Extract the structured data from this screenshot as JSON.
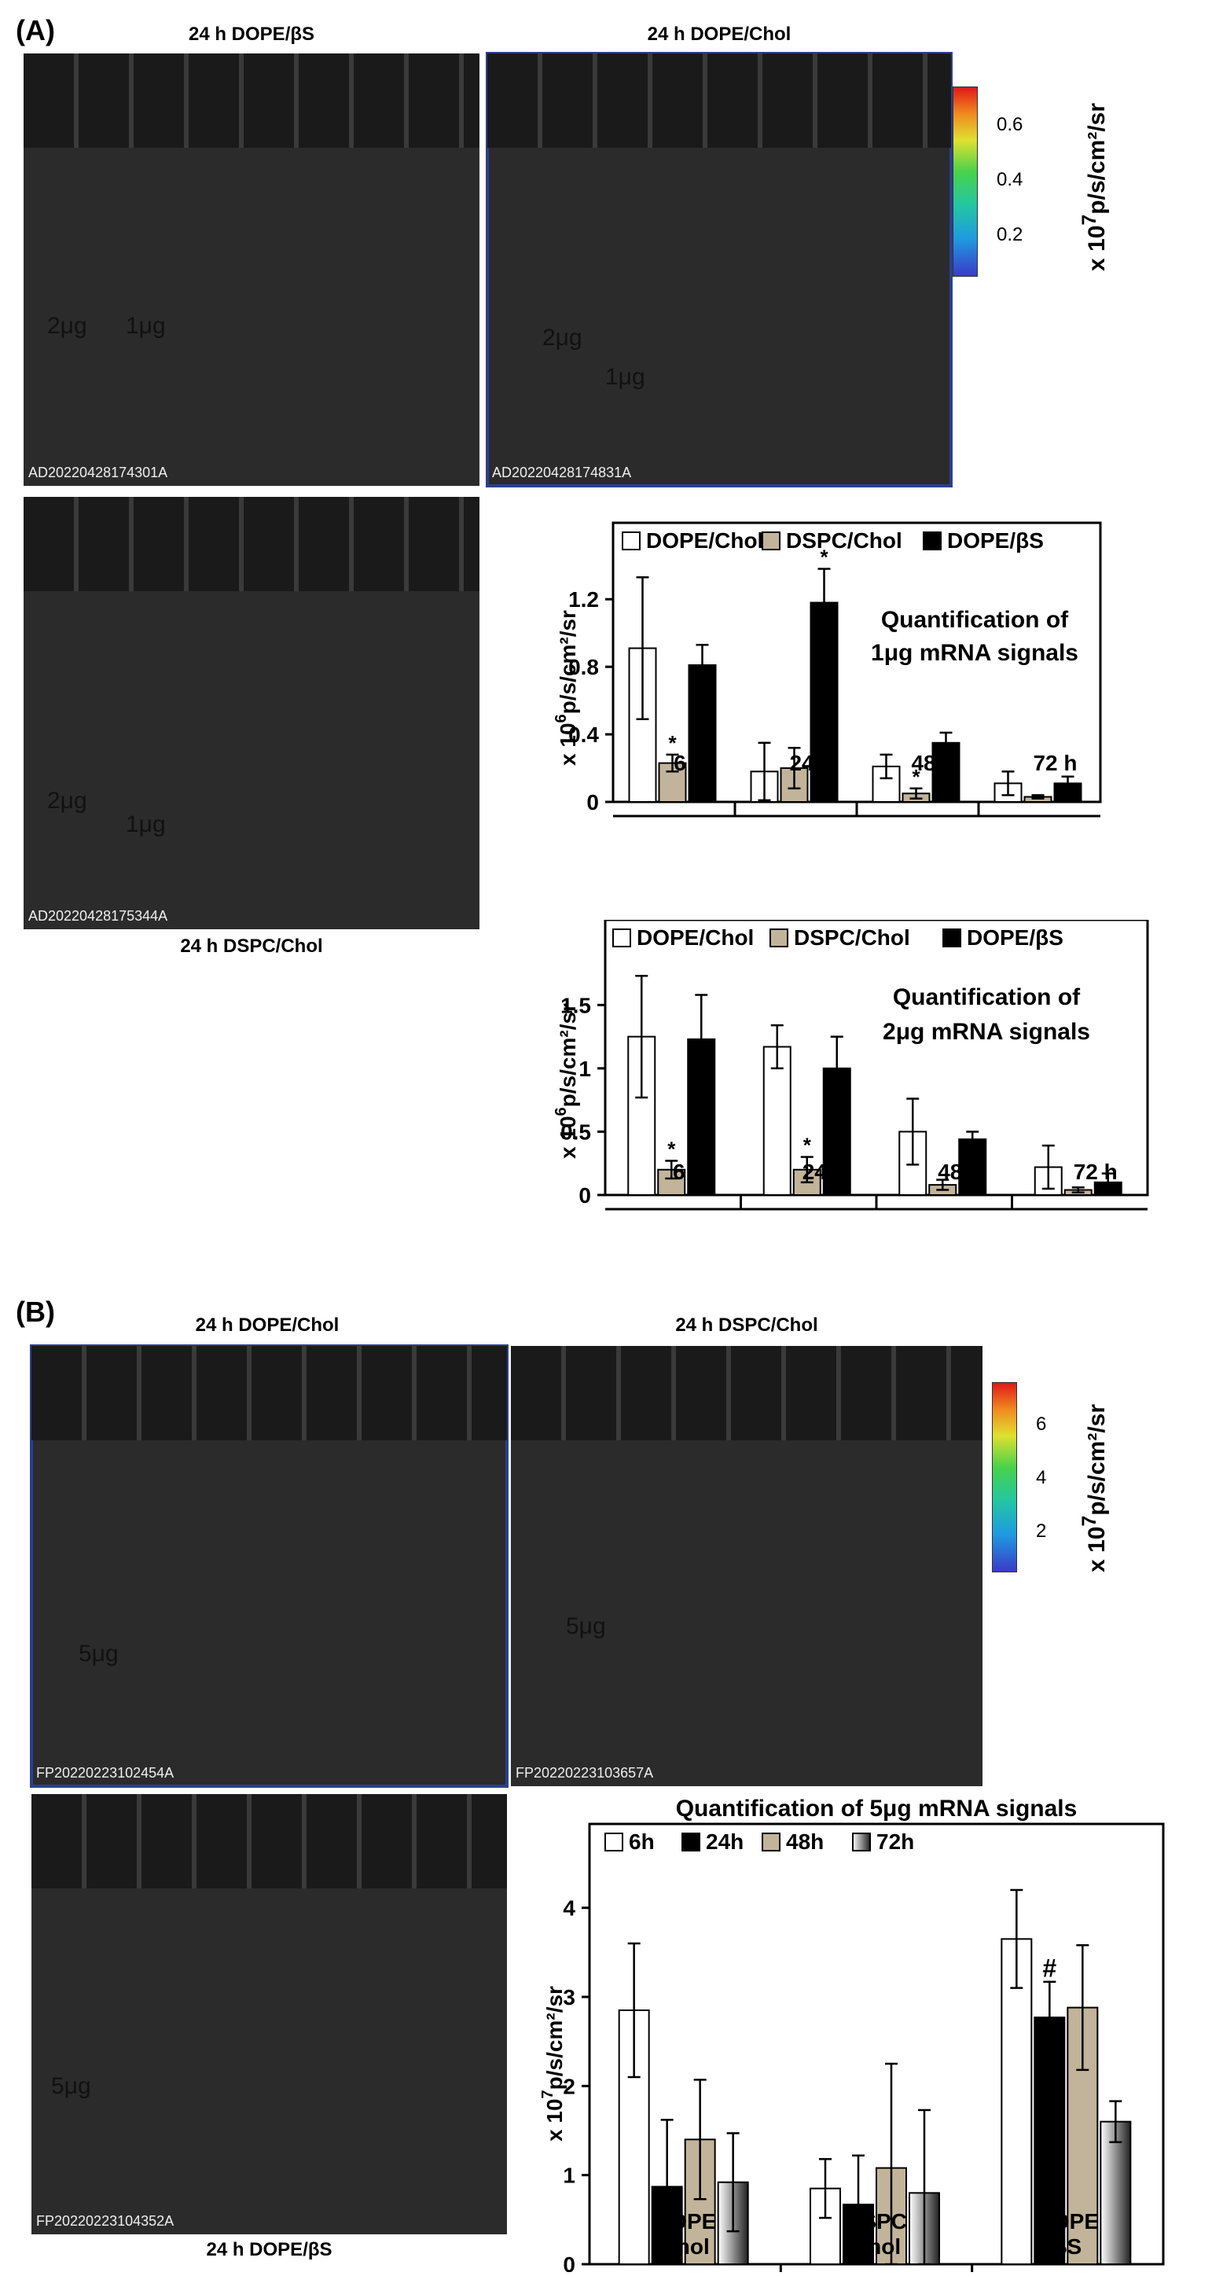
{
  "panel_a": {
    "label": "(A)",
    "photo1": {
      "caption": "24 h DOPE/βS",
      "id": "AD20220428174301A",
      "dose_a": "2μg",
      "dose_b": "1μg"
    },
    "photo2": {
      "caption": "24 h DOPE/Chol",
      "id": "AD20220428174831A",
      "dose_a": "2μg",
      "dose_b": "1μg"
    },
    "photo3": {
      "caption": "24 h DSPC/Chol",
      "id": "AD20220428175344A",
      "dose_a": "2μg",
      "dose_b": "1μg"
    },
    "colorbar": {
      "ticks": [
        "0.6",
        "0.4",
        "0.2"
      ],
      "unit_prefix": "x 10",
      "unit_exp": "7",
      "unit_suffix": "p/s/cm²/sr"
    }
  },
  "panel_b": {
    "label": "(B)",
    "photo1": {
      "caption": "24 h DOPE/Chol",
      "id": "FP20220223102454A",
      "dose": "5μg"
    },
    "photo2": {
      "caption": "24 h DSPC/Chol",
      "id": "FP20220223103657A",
      "dose": "5μg"
    },
    "photo3": {
      "caption": "24 h DOPE/βS",
      "id": "FP20220223104352A",
      "dose": "5μg"
    },
    "colorbar": {
      "ticks": [
        "6",
        "4",
        "2"
      ],
      "unit_prefix": "x 10",
      "unit_exp": "7",
      "unit_suffix": "p/s/cm²/sr"
    }
  },
  "colors": {
    "open": "#ffffff",
    "tan": "#c2b49a",
    "black": "#000000",
    "border": "#2a3f8f"
  },
  "chart_data": [
    {
      "type": "bar",
      "title": "Quantification of 1μg mRNA signals",
      "ylabel_prefix": "x 10",
      "ylabel_exp": "6",
      "ylabel_suffix": "p/s/cm²/sr",
      "categories": [
        "6 h",
        "24 h",
        "48 h",
        "72 h"
      ],
      "yticks": [
        "0",
        "0.4",
        "0.8",
        "1.2"
      ],
      "ylim": [
        0,
        1.35
      ],
      "legend_placement": "top",
      "series": [
        {
          "name": "DOPE/Chol",
          "color": "#ffffff",
          "values": [
            0.91,
            0.18,
            0.21,
            0.11
          ],
          "errors": [
            0.42,
            0.17,
            0.07,
            0.07
          ],
          "marks": [
            "",
            "",
            "",
            ""
          ]
        },
        {
          "name": "DSPC/Chol",
          "color": "#c2b49a",
          "values": [
            0.23,
            0.2,
            0.05,
            0.03
          ],
          "errors": [
            0.05,
            0.12,
            0.03,
            0.01
          ],
          "marks": [
            "*",
            "",
            "*",
            ""
          ]
        },
        {
          "name": "DOPE/βS",
          "color": "#000000",
          "values": [
            0.81,
            1.18,
            0.35,
            0.11
          ],
          "errors": [
            0.12,
            0.2,
            0.06,
            0.04
          ],
          "marks": [
            "",
            "*",
            "",
            ""
          ]
        }
      ]
    },
    {
      "type": "bar",
      "title": "Quantification of 2μg mRNA signals",
      "ylabel_prefix": "x 10",
      "ylabel_exp": "6",
      "ylabel_suffix": "p/s/cm²/sr",
      "categories": [
        "6 h",
        "24 h",
        "48 h",
        "72 h"
      ],
      "yticks": [
        "0",
        "0.5",
        "1",
        "1.5"
      ],
      "ylim": [
        0,
        1.8
      ],
      "legend_placement": "top",
      "series": [
        {
          "name": "DOPE/Chol",
          "color": "#ffffff",
          "values": [
            1.25,
            1.17,
            0.5,
            0.22
          ],
          "errors": [
            0.48,
            0.17,
            0.26,
            0.17
          ],
          "marks": [
            "",
            "",
            "",
            ""
          ]
        },
        {
          "name": "DSPC/Chol",
          "color": "#c2b49a",
          "values": [
            0.2,
            0.2,
            0.08,
            0.04
          ],
          "errors": [
            0.07,
            0.1,
            0.04,
            0.02
          ],
          "marks": [
            "*",
            "*",
            "",
            ""
          ]
        },
        {
          "name": "DOPE/βS",
          "color": "#000000",
          "values": [
            1.23,
            1.0,
            0.44,
            0.1
          ],
          "errors": [
            0.35,
            0.25,
            0.06,
            0.07
          ],
          "marks": [
            "",
            "",
            "",
            ""
          ]
        }
      ]
    },
    {
      "type": "bar",
      "title": "Quantification of 5μg mRNA signals",
      "ylabel_prefix": "x 10",
      "ylabel_exp": "7",
      "ylabel_suffix": "p/s/cm²/sr",
      "categories": [
        "DOPE\nChol",
        "DSPC\nChol",
        "DOPE\nβS"
      ],
      "yticks": [
        "0",
        "1",
        "2",
        "3",
        "4"
      ],
      "ylim": [
        0,
        4.5
      ],
      "legend_placement": "top",
      "series": [
        {
          "name": "6h",
          "color": "#ffffff",
          "values": [
            2.85,
            0.85,
            3.65
          ],
          "errors": [
            0.75,
            0.33,
            0.55
          ],
          "marks": [
            "",
            "",
            ""
          ]
        },
        {
          "name": "24h",
          "color": "#000000",
          "values": [
            0.87,
            0.67,
            2.77
          ],
          "errors": [
            0.75,
            0.55,
            0.4
          ],
          "marks": [
            "",
            "",
            "#"
          ]
        },
        {
          "name": "48h",
          "color": "#c2b49a",
          "values": [
            1.4,
            1.08,
            2.88
          ],
          "errors": [
            0.67,
            1.17,
            0.7
          ],
          "marks": [
            "",
            "",
            ""
          ]
        },
        {
          "name": "72h",
          "color": "gradient",
          "values": [
            0.92,
            0.8,
            1.6
          ],
          "errors": [
            0.55,
            0.93,
            0.23
          ],
          "marks": [
            "",
            "",
            ""
          ]
        }
      ]
    }
  ]
}
